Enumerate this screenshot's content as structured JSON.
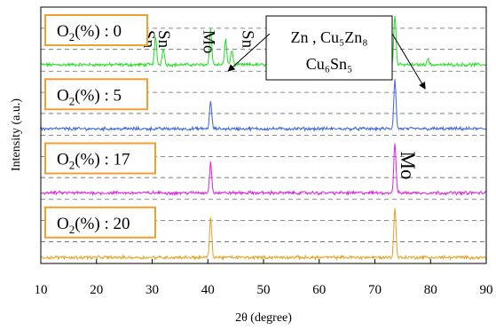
{
  "chart_data": {
    "type": "line",
    "title": "",
    "xlabel": "2θ (degree)",
    "ylabel": "Intensity (a.u.)",
    "xlim": [
      10,
      90
    ],
    "x_ticks": [
      "10",
      "20",
      "30",
      "40",
      "50",
      "60",
      "70",
      "80",
      "90"
    ],
    "grid": "horizontal dashed",
    "series": [
      {
        "label_base": "O",
        "label_sub": "2",
        "label_suffix": "(%) : 0",
        "color": "#22dd22",
        "baseline_level": 0.18,
        "peaks": [
          {
            "x": 30.6,
            "h": 0.55
          },
          {
            "x": 32.0,
            "h": 0.35
          },
          {
            "x": 40.5,
            "h": 0.72
          },
          {
            "x": 43.2,
            "h": 0.5
          },
          {
            "x": 44.3,
            "h": 0.3
          },
          {
            "x": 73.6,
            "h": 1.0
          },
          {
            "x": 79.5,
            "h": 0.12
          }
        ]
      },
      {
        "label_base": "O",
        "label_sub": "2",
        "label_suffix": "(%) : 5",
        "color": "#3a66dd",
        "baseline_level": 0.18,
        "peaks": [
          {
            "x": 40.5,
            "h": 0.55
          },
          {
            "x": 73.6,
            "h": 1.0
          }
        ]
      },
      {
        "label_base": "O",
        "label_sub": "2",
        "label_suffix": "(%) : 17",
        "color": "#dd22dd",
        "baseline_level": 0.18,
        "peaks": [
          {
            "x": 40.5,
            "h": 0.62
          },
          {
            "x": 73.6,
            "h": 1.0
          }
        ]
      },
      {
        "label_base": "O",
        "label_sub": "2",
        "label_suffix": "(%) : 20",
        "color": "#e6a020",
        "baseline_level": 0.12,
        "peaks": [
          {
            "x": 40.5,
            "h": 0.8
          },
          {
            "x": 73.6,
            "h": 1.0
          }
        ]
      }
    ],
    "annotations": [
      {
        "text": "Sn",
        "x": 29.8,
        "series": 0
      },
      {
        "text": "Sn",
        "x": 32.5,
        "series": 0
      },
      {
        "text": "Mo",
        "x": 40.5,
        "series": 0
      },
      {
        "text": "Sn",
        "x": 47.5,
        "series": 0
      },
      {
        "text": "Mo",
        "x": 76.0,
        "series": 2,
        "big": true
      }
    ],
    "callout": {
      "line1": "Zn , Cu₅Zn₈",
      "line2": "Cu₆Sn₅",
      "arrow_targets": [
        43.2,
        79.5
      ]
    },
    "legend_border_color": "#f0a030"
  }
}
